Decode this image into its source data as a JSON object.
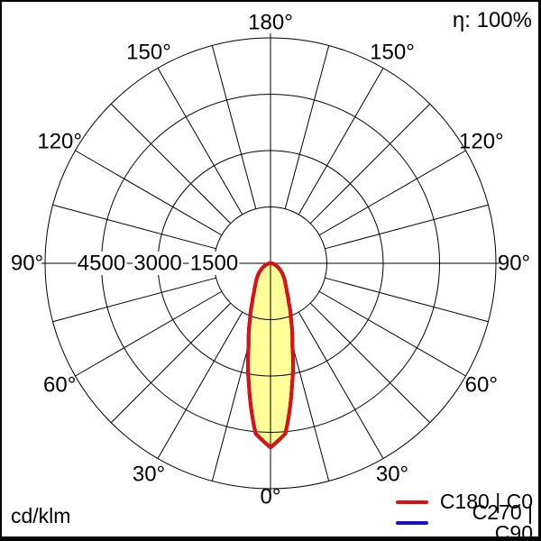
{
  "overlays": {
    "efficiency": "η: 100%",
    "unit": "cd/klm"
  },
  "legend": {
    "items": [
      {
        "label": "C180 | C0",
        "color": "#dd1111"
      },
      {
        "label": "C270 | C90",
        "color": "#1111cc"
      }
    ]
  },
  "chart_data": {
    "type": "line",
    "subtype": "polar-photometric-intensity-distribution",
    "units": "cd/klm",
    "efficiency": "η: 100%",
    "angle_tick_degrees": [
      0,
      30,
      60,
      90,
      120,
      150,
      180
    ],
    "angle_tick_labels": [
      "0°",
      "30°",
      "60°",
      "90°",
      "120°",
      "150°",
      "180°"
    ],
    "grid_angle_step_deg": 15,
    "radial_ticks": [
      1500,
      3000,
      4500,
      6000
    ],
    "radial_tick_labels_shown": [
      "4500",
      "3000",
      "1500"
    ],
    "radial_axis_max": 6000,
    "orientation": "0° at bottom, 180° at top",
    "fill_color": "#ffff99",
    "series": [
      {
        "name": "C180 | C0",
        "color": "#dd1111",
        "gamma_deg": [
          0,
          5,
          10,
          15,
          20,
          25,
          30,
          35,
          40,
          45,
          50,
          55,
          60,
          65,
          70,
          75,
          80,
          85,
          90
        ],
        "values_cd_per_klm": [
          4900,
          4550,
          3300,
          2250,
          1600,
          1150,
          870,
          700,
          590,
          490,
          400,
          320,
          250,
          190,
          140,
          100,
          60,
          30,
          0
        ]
      },
      {
        "name": "C270 | C90",
        "color": "#1111cc",
        "note": "curve coincides with C180 | C0 and is hidden beneath it",
        "gamma_deg": [
          0,
          5,
          10,
          15,
          20,
          25,
          30,
          35,
          40,
          45,
          50,
          55,
          60,
          65,
          70,
          75,
          80,
          85,
          90
        ],
        "values_cd_per_klm": [
          4900,
          4550,
          3300,
          2250,
          1600,
          1150,
          870,
          700,
          590,
          490,
          400,
          320,
          250,
          190,
          140,
          100,
          60,
          30,
          0
        ]
      }
    ]
  }
}
